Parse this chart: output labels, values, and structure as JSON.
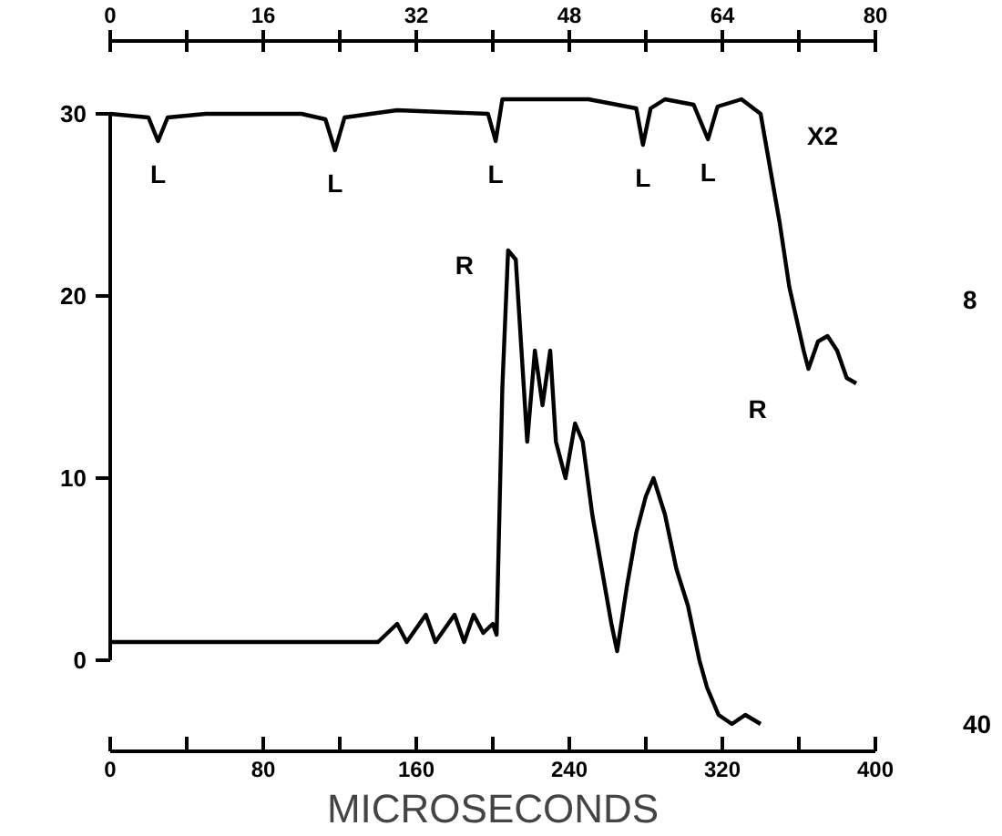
{
  "chart_data": {
    "type": "line",
    "xlabel": "MICROSECONDS",
    "xlim": [
      0,
      400
    ],
    "xticks": [
      0,
      {
        "value": 40,
        "label": null
      },
      80,
      {
        "value": 120,
        "label": null
      },
      160,
      {
        "value": 200,
        "label": null
      },
      240,
      {
        "value": 280,
        "label": null
      },
      320,
      {
        "value": 360,
        "label": null
      },
      400
    ],
    "x2lim": [
      0,
      80
    ],
    "x2ticks": [
      0,
      {
        "value": 8,
        "label": null
      },
      16,
      {
        "value": 24,
        "label": null
      },
      32,
      {
        "value": 40,
        "label": null
      },
      48,
      {
        "value": 56,
        "label": null
      },
      64,
      {
        "value": 72,
        "label": null
      },
      80
    ],
    "ylim": [
      -5,
      34
    ],
    "yticks": [
      0,
      10,
      20,
      30
    ],
    "grid": false,
    "marker": "none",
    "line_style": "solid",
    "series": [
      {
        "axis": "x2",
        "color": "#000000",
        "x": [
          0,
          4,
          5,
          6,
          10,
          20,
          22.5,
          23.5,
          24.5,
          30,
          39.5,
          40.3,
          41,
          50,
          55,
          55.7,
          56.5,
          58,
          61,
          62.5,
          63.5,
          66,
          68,
          69,
          70,
          71,
          72.5,
          73,
          74,
          75,
          76,
          77,
          78
        ],
        "values": [
          30,
          29.8,
          28.5,
          29.8,
          30,
          30,
          29.7,
          28,
          29.8,
          30.2,
          30,
          28.5,
          30.8,
          30.8,
          30.3,
          28.3,
          30.3,
          30.8,
          30.5,
          28.6,
          30.4,
          30.8,
          30,
          27,
          24,
          20.5,
          17,
          16,
          17.5,
          17.8,
          17,
          15.5,
          15.2
        ]
      },
      {
        "color": "#000000",
        "x": [
          0,
          20,
          40,
          60,
          80,
          100,
          120,
          140,
          150,
          155,
          165,
          170,
          180,
          185,
          190,
          195,
          200,
          202,
          205,
          208,
          212,
          215,
          218,
          222,
          226,
          230,
          233,
          238,
          243,
          247,
          252,
          257,
          262,
          265,
          270,
          275,
          280,
          284,
          290,
          296,
          302,
          308,
          312,
          318,
          325,
          332,
          340
        ],
        "values": [
          1,
          1,
          1,
          1,
          1,
          1,
          1,
          1,
          2,
          1,
          2.5,
          1,
          2.5,
          1,
          2.5,
          1.5,
          2,
          1.4,
          15,
          22.5,
          22,
          17,
          12,
          17,
          14,
          17,
          12,
          10,
          13,
          12,
          8,
          5,
          2,
          0.5,
          4,
          7,
          9,
          10,
          8,
          5,
          3,
          0,
          -1.5,
          -3,
          -3.5,
          -3,
          -3.5
        ]
      }
    ],
    "annotations": [
      "L",
      "L",
      "L",
      "L",
      "L",
      "R",
      "R",
      "X2",
      "8",
      "40"
    ]
  }
}
